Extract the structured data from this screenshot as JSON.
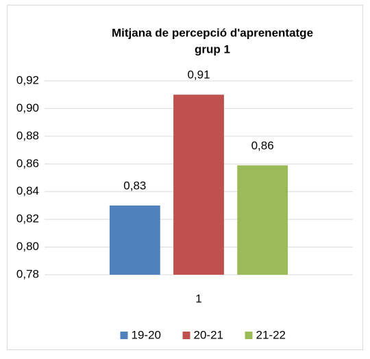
{
  "chart_data": {
    "type": "bar",
    "title": [
      "Mitjana de percepció d'aprenentatge",
      "grup 1"
    ],
    "categories": [
      "1"
    ],
    "series": [
      {
        "name": "19-20",
        "color": "#4f81bd",
        "values": [
          0.83
        ],
        "value_labels": [
          "0,83"
        ]
      },
      {
        "name": "20-21",
        "color": "#c0504d",
        "values": [
          0.91
        ],
        "value_labels": [
          "0,91"
        ]
      },
      {
        "name": "21-22",
        "color": "#9bbb59",
        "values": [
          0.859
        ],
        "value_labels": [
          "0,86"
        ]
      }
    ],
    "ylim": [
      0.78,
      0.92
    ],
    "yticks": [
      {
        "value": 0.78,
        "label": "0,78"
      },
      {
        "value": 0.8,
        "label": "0,80"
      },
      {
        "value": 0.82,
        "label": "0,82"
      },
      {
        "value": 0.84,
        "label": "0,84"
      },
      {
        "value": 0.86,
        "label": "0,86"
      },
      {
        "value": 0.88,
        "label": "0,88"
      },
      {
        "value": 0.9,
        "label": "0,90"
      },
      {
        "value": 0.92,
        "label": "0,92"
      }
    ],
    "grid": true,
    "legend": "bottom"
  }
}
